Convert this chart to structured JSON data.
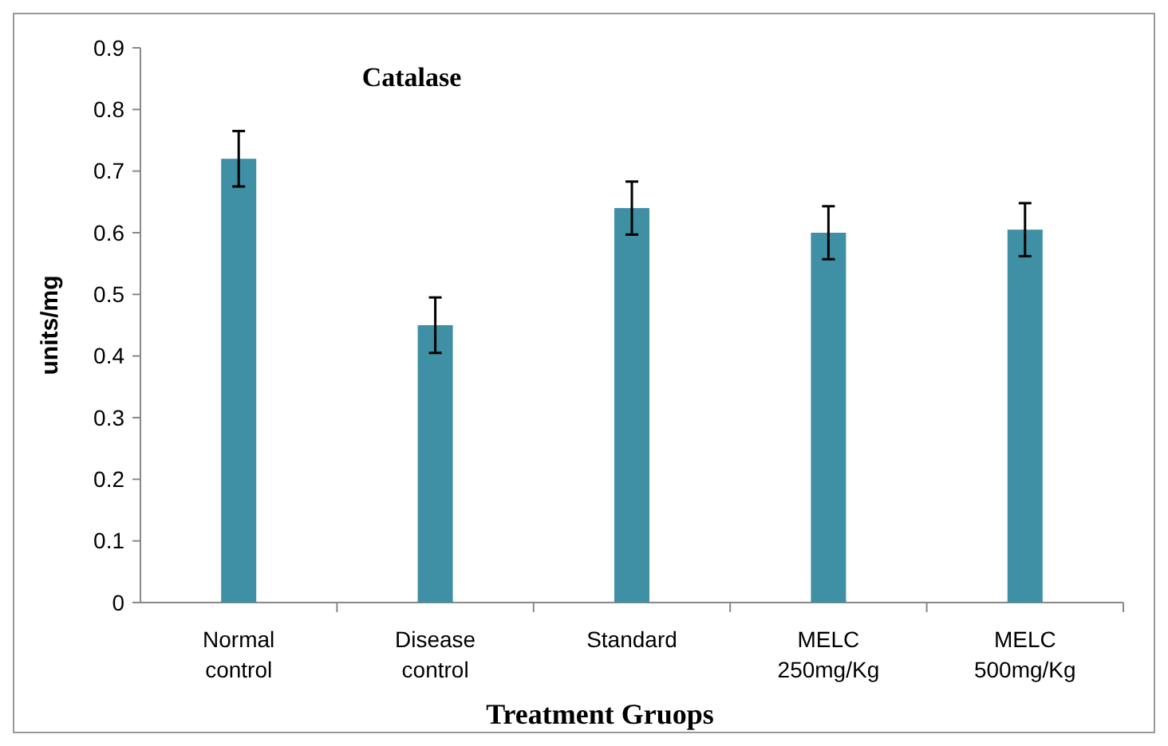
{
  "chart_data": {
    "type": "bar",
    "title": "Catalase",
    "xlabel": "Treatment Gruops",
    "ylabel": "units/mg",
    "categories": [
      "Normal control",
      "Disease control",
      "Standard",
      "MELC 250mg/Kg",
      "MELC 500mg/Kg"
    ],
    "values": [
      0.72,
      0.45,
      0.64,
      0.6,
      0.605
    ],
    "errors": [
      0.045,
      0.045,
      0.043,
      0.043,
      0.043
    ],
    "color": "#3f8fa5",
    "ylim": [
      0,
      0.9
    ],
    "yticks": [
      0,
      0.1,
      0.2,
      0.3,
      0.4,
      0.5,
      0.6,
      0.7,
      0.8,
      0.9
    ],
    "grid": false
  }
}
